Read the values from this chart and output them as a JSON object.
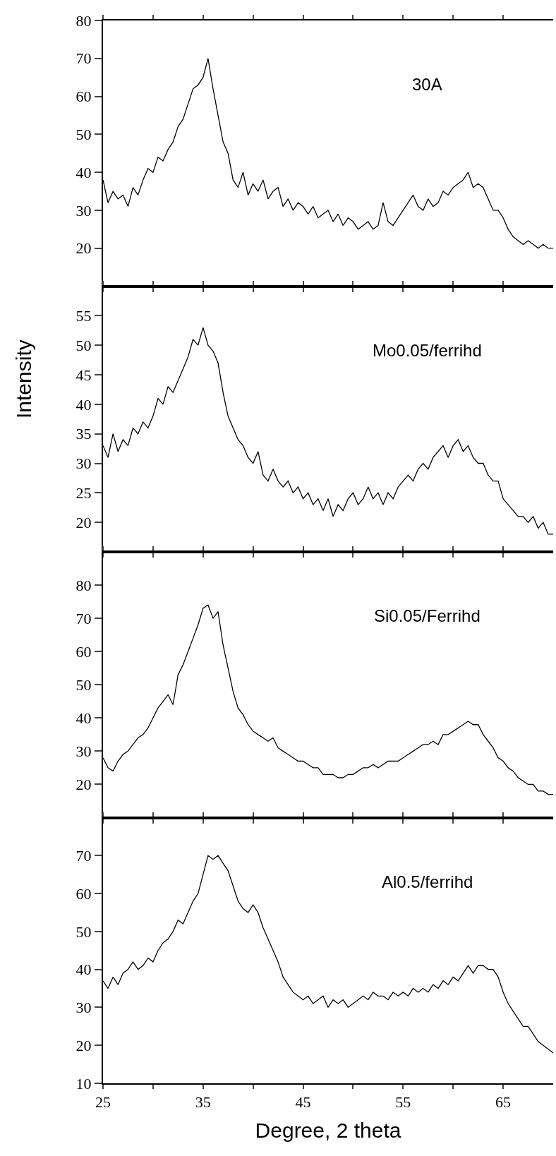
{
  "chart_data": [
    {
      "type": "line",
      "x": [
        25,
        25.5,
        26,
        26.5,
        27,
        27.5,
        28,
        28.5,
        29,
        29.5,
        30,
        30.5,
        31,
        31.5,
        32,
        32.5,
        33,
        33.5,
        34,
        34.5,
        35,
        35.5,
        36,
        36.5,
        37,
        37.5,
        38,
        38.5,
        39,
        39.5,
        40,
        40.5,
        41,
        41.5,
        42,
        42.5,
        43,
        43.5,
        44,
        44.5,
        45,
        45.5,
        46,
        46.5,
        47,
        47.5,
        48,
        48.5,
        49,
        49.5,
        50,
        50.5,
        51,
        51.5,
        52,
        52.5,
        53,
        53.5,
        54,
        54.5,
        55,
        55.5,
        56,
        56.5,
        57,
        57.5,
        58,
        58.5,
        59,
        59.5,
        60,
        60.5,
        61,
        61.5,
        62,
        62.5,
        63,
        63.5,
        64,
        64.5,
        65,
        65.5,
        66,
        66.5,
        67,
        67.5,
        68,
        68.5,
        69,
        69.5,
        70
      ],
      "series": [
        {
          "name": "30A",
          "color": "#000000",
          "values": [
            38,
            32,
            35,
            33,
            34,
            31,
            36,
            34,
            38,
            41,
            40,
            44,
            43,
            46,
            48,
            52,
            54,
            58,
            62,
            63,
            65,
            70,
            62,
            55,
            48,
            45,
            38,
            36,
            40,
            34,
            37,
            35,
            38,
            33,
            35,
            36,
            31,
            33,
            30,
            32,
            31,
            29,
            31,
            28,
            29,
            30,
            27,
            29,
            26,
            28,
            27,
            25,
            26,
            27,
            25,
            26,
            32,
            27,
            26,
            28,
            30,
            32,
            34,
            31,
            30,
            33,
            31,
            32,
            35,
            34,
            36,
            37,
            38,
            40,
            36,
            37,
            36,
            33,
            30,
            30,
            28,
            25,
            23,
            22,
            21,
            22,
            21,
            20,
            21,
            20,
            20
          ]
        }
      ],
      "ylim": [
        10,
        80
      ],
      "yticks": [
        20,
        30,
        40,
        50,
        60,
        70,
        80
      ],
      "xlim": [
        25,
        70
      ],
      "xticks": [
        25,
        {
          "value": 30,
          "label": null
        },
        35,
        {
          "value": 40,
          "label": null
        },
        45,
        {
          "value": 50,
          "label": null
        },
        55,
        {
          "value": 60,
          "label": null
        },
        65
      ],
      "tick_labels": "y",
      "grid": false,
      "marker": "none",
      "line_style": "solid"
    },
    {
      "type": "line",
      "x": [
        25,
        25.5,
        26,
        26.5,
        27,
        27.5,
        28,
        28.5,
        29,
        29.5,
        30,
        30.5,
        31,
        31.5,
        32,
        32.5,
        33,
        33.5,
        34,
        34.5,
        35,
        35.5,
        36,
        36.5,
        37,
        37.5,
        38,
        38.5,
        39,
        39.5,
        40,
        40.5,
        41,
        41.5,
        42,
        42.5,
        43,
        43.5,
        44,
        44.5,
        45,
        45.5,
        46,
        46.5,
        47,
        47.5,
        48,
        48.5,
        49,
        49.5,
        50,
        50.5,
        51,
        51.5,
        52,
        52.5,
        53,
        53.5,
        54,
        54.5,
        55,
        55.5,
        56,
        56.5,
        57,
        57.5,
        58,
        58.5,
        59,
        59.5,
        60,
        60.5,
        61,
        61.5,
        62,
        62.5,
        63,
        63.5,
        64,
        64.5,
        65,
        65.5,
        66,
        66.5,
        67,
        67.5,
        68,
        68.5,
        69,
        69.5,
        70
      ],
      "series": [
        {
          "name": "Mo0.05/ferrihd",
          "color": "#000000",
          "values": [
            33,
            31,
            35,
            32,
            34,
            33,
            36,
            35,
            37,
            36,
            38,
            41,
            40,
            43,
            42,
            44,
            46,
            48,
            51,
            50,
            53,
            50,
            49,
            47,
            42,
            38,
            36,
            34,
            33,
            31,
            30,
            32,
            28,
            27,
            29,
            27,
            26,
            27,
            25,
            26,
            24,
            25,
            23,
            24,
            22,
            24,
            21,
            23,
            22,
            24,
            25,
            23,
            24,
            26,
            24,
            25,
            23,
            25,
            24,
            26,
            27,
            28,
            27,
            29,
            30,
            29,
            31,
            32,
            33,
            31,
            33,
            34,
            32,
            33,
            31,
            30,
            30,
            28,
            27,
            27,
            24,
            23,
            22,
            21,
            21,
            20,
            21,
            19,
            20,
            18,
            18
          ]
        }
      ],
      "ylim": [
        15,
        60
      ],
      "yticks": [
        20,
        25,
        30,
        35,
        40,
        45,
        50,
        55
      ],
      "ylabel": "Intensity",
      "xlim": [
        25,
        70
      ],
      "xticks": [
        25,
        {
          "value": 30,
          "label": null
        },
        35,
        {
          "value": 40,
          "label": null
        },
        45,
        {
          "value": 50,
          "label": null
        },
        55,
        {
          "value": 60,
          "label": null
        },
        65
      ],
      "tick_labels": "y",
      "grid": false,
      "marker": "none",
      "line_style": "solid"
    },
    {
      "type": "line",
      "x": [
        25,
        25.5,
        26,
        26.5,
        27,
        27.5,
        28,
        28.5,
        29,
        29.5,
        30,
        30.5,
        31,
        31.5,
        32,
        32.5,
        33,
        33.5,
        34,
        34.5,
        35,
        35.5,
        36,
        36.5,
        37,
        37.5,
        38,
        38.5,
        39,
        39.5,
        40,
        40.5,
        41,
        41.5,
        42,
        42.5,
        43,
        43.5,
        44,
        44.5,
        45,
        45.5,
        46,
        46.5,
        47,
        47.5,
        48,
        48.5,
        49,
        49.5,
        50,
        50.5,
        51,
        51.5,
        52,
        52.5,
        53,
        53.5,
        54,
        54.5,
        55,
        55.5,
        56,
        56.5,
        57,
        57.5,
        58,
        58.5,
        59,
        59.5,
        60,
        60.5,
        61,
        61.5,
        62,
        62.5,
        63,
        63.5,
        64,
        64.5,
        65,
        65.5,
        66,
        66.5,
        67,
        67.5,
        68,
        68.5,
        69,
        69.5,
        70
      ],
      "series": [
        {
          "name": "Si0.05/Ferrihd",
          "color": "#000000",
          "values": [
            28,
            25,
            24,
            27,
            29,
            30,
            32,
            34,
            35,
            37,
            40,
            43,
            45,
            47,
            44,
            53,
            56,
            60,
            64,
            68,
            73,
            74,
            70,
            72,
            62,
            55,
            48,
            43,
            41,
            38,
            36,
            35,
            34,
            33,
            34,
            31,
            30,
            29,
            28,
            27,
            27,
            26,
            25,
            25,
            23,
            23,
            23,
            22,
            22,
            23,
            23,
            24,
            25,
            25,
            26,
            25,
            26,
            27,
            27,
            27,
            28,
            29,
            30,
            31,
            32,
            32,
            33,
            32,
            35,
            35,
            36,
            37,
            38,
            39,
            38,
            38,
            35,
            33,
            31,
            28,
            27,
            25,
            24,
            22,
            21,
            20,
            20,
            18,
            18,
            17,
            17
          ]
        }
      ],
      "ylim": [
        10,
        90
      ],
      "yticks": [
        20,
        30,
        40,
        50,
        60,
        70,
        80
      ],
      "xlim": [
        25,
        70
      ],
      "xticks": [
        25,
        {
          "value": 30,
          "label": null
        },
        35,
        {
          "value": 40,
          "label": null
        },
        45,
        {
          "value": 50,
          "label": null
        },
        55,
        {
          "value": 60,
          "label": null
        },
        65
      ],
      "tick_labels": "y",
      "grid": false,
      "marker": "none",
      "line_style": "solid"
    },
    {
      "type": "line",
      "x": [
        25,
        25.5,
        26,
        26.5,
        27,
        27.5,
        28,
        28.5,
        29,
        29.5,
        30,
        30.5,
        31,
        31.5,
        32,
        32.5,
        33,
        33.5,
        34,
        34.5,
        35,
        35.5,
        36,
        36.5,
        37,
        37.5,
        38,
        38.5,
        39,
        39.5,
        40,
        40.5,
        41,
        41.5,
        42,
        42.5,
        43,
        43.5,
        44,
        44.5,
        45,
        45.5,
        46,
        46.5,
        47,
        47.5,
        48,
        48.5,
        49,
        49.5,
        50,
        50.5,
        51,
        51.5,
        52,
        52.5,
        53,
        53.5,
        54,
        54.5,
        55,
        55.5,
        56,
        56.5,
        57,
        57.5,
        58,
        58.5,
        59,
        59.5,
        60,
        60.5,
        61,
        61.5,
        62,
        62.5,
        63,
        63.5,
        64,
        64.5,
        65,
        65.5,
        66,
        66.5,
        67,
        67.5,
        68,
        68.5,
        69,
        69.5,
        70
      ],
      "series": [
        {
          "name": "Al0.5/ferrihd",
          "color": "#000000",
          "values": [
            37,
            35,
            38,
            36,
            39,
            40,
            42,
            40,
            41,
            43,
            42,
            45,
            47,
            48,
            50,
            53,
            52,
            55,
            58,
            60,
            65,
            70,
            69,
            70,
            68,
            66,
            62,
            58,
            56,
            55,
            57,
            55,
            51,
            48,
            45,
            42,
            38,
            36,
            34,
            33,
            32,
            33,
            31,
            32,
            33,
            30,
            32,
            31,
            32,
            30,
            31,
            32,
            33,
            32,
            34,
            33,
            33,
            32,
            34,
            33,
            34,
            33,
            35,
            34,
            35,
            34,
            36,
            35,
            37,
            36,
            38,
            37,
            39,
            41,
            39,
            41,
            41,
            40,
            40,
            38,
            34,
            31,
            29,
            27,
            25,
            25,
            23,
            21,
            20,
            19,
            18
          ]
        }
      ],
      "ylim": [
        10,
        80
      ],
      "yticks": [
        10,
        20,
        30,
        40,
        50,
        60,
        70
      ],
      "xlabel": "Degree, 2 theta",
      "xlim": [
        25,
        70
      ],
      "xticks": [
        25,
        {
          "value": 30,
          "label": null
        },
        35,
        {
          "value": 40,
          "label": null
        },
        45,
        {
          "value": 50,
          "label": null
        },
        55,
        {
          "value": 60,
          "label": null
        },
        65
      ],
      "grid": false,
      "marker": "none",
      "line_style": "solid"
    }
  ]
}
